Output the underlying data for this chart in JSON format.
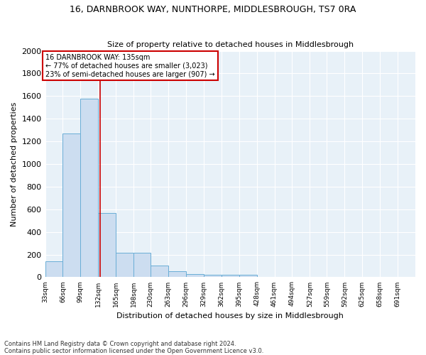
{
  "title1": "16, DARNBROOK WAY, NUNTHORPE, MIDDLESBROUGH, TS7 0RA",
  "title2": "Size of property relative to detached houses in Middlesbrough",
  "xlabel": "Distribution of detached houses by size in Middlesbrough",
  "ylabel": "Number of detached properties",
  "footnote1": "Contains HM Land Registry data © Crown copyright and database right 2024.",
  "footnote2": "Contains public sector information licensed under the Open Government Licence v3.0.",
  "annotation_line1": "16 DARNBROOK WAY: 135sqm",
  "annotation_line2": "← 77% of detached houses are smaller (3,023)",
  "annotation_line3": "23% of semi-detached houses are larger (907) →",
  "property_size": 135,
  "bar_edges": [
    33,
    66,
    99,
    132,
    165,
    198,
    230,
    263,
    296,
    329,
    362,
    395,
    428,
    461,
    494,
    527,
    559,
    592,
    625,
    658,
    691
  ],
  "bar_heights": [
    140,
    1270,
    1580,
    570,
    215,
    215,
    100,
    50,
    25,
    20,
    20,
    20,
    0,
    0,
    0,
    0,
    0,
    0,
    0,
    0
  ],
  "bar_color": "#ccddf0",
  "bar_edge_color": "#6aaed6",
  "vline_color": "#cc0000",
  "vline_x": 135,
  "background_color": "#e8f1f8",
  "ylim": [
    0,
    2000
  ],
  "yticks": [
    0,
    200,
    400,
    600,
    800,
    1000,
    1200,
    1400,
    1600,
    1800,
    2000
  ],
  "tick_labels": [
    "33sqm",
    "66sqm",
    "99sqm",
    "132sqm",
    "165sqm",
    "198sqm",
    "230sqm",
    "263sqm",
    "296sqm",
    "329sqm",
    "362sqm",
    "395sqm",
    "428sqm",
    "461sqm",
    "494sqm",
    "527sqm",
    "559sqm",
    "592sqm",
    "625sqm",
    "658sqm",
    "691sqm"
  ],
  "title1_fontsize": 9,
  "title2_fontsize": 8,
  "ylabel_fontsize": 8,
  "xlabel_fontsize": 8,
  "ytick_fontsize": 8,
  "xtick_fontsize": 6.5,
  "annot_fontsize": 7,
  "footnote_fontsize": 6
}
